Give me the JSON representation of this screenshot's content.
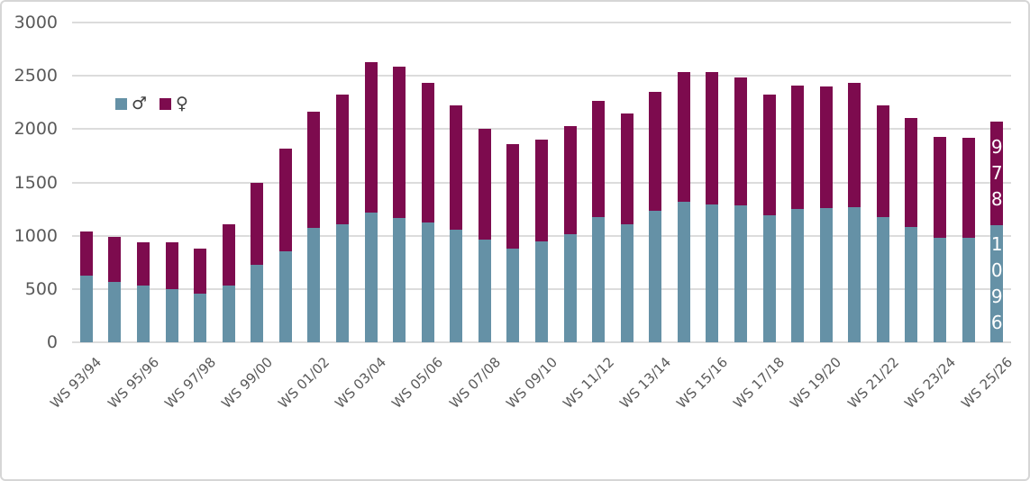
{
  "chart_data": {
    "type": "bar",
    "stacked": true,
    "title": "",
    "xlabel": "",
    "ylabel": "",
    "categories": [
      "WS 93/94",
      "WS 94/95",
      "WS 95/96",
      "WS 96/97",
      "WS 97/98",
      "WS 98/99",
      "WS 99/00",
      "WS 00/01",
      "WS 01/02",
      "WS 02/03",
      "WS 03/04",
      "WS 04/05",
      "WS 05/06",
      "WS 06/07",
      "WS 07/08",
      "WS 08/09",
      "WS 09/10",
      "WS 10/11",
      "WS 11/12",
      "WS 12/13",
      "WS 13/14",
      "WS 14/15",
      "WS 15/16",
      "WS 16/17",
      "WS 17/18",
      "WS 18/19",
      "WS 19/20",
      "WS 20/21",
      "WS 21/22",
      "WS 22/23",
      "WS 23/24",
      "WS 24/25",
      "WS 25/26"
    ],
    "series": [
      {
        "name": "male",
        "legend_label": "♂",
        "color": "#6591A6",
        "values": [
          625,
          570,
          530,
          500,
          460,
          530,
          725,
          850,
          1075,
          1110,
          1220,
          1170,
          1120,
          1060,
          960,
          875,
          945,
          1010,
          1175,
          1105,
          1230,
          1320,
          1290,
          1285,
          1190,
          1250,
          1255,
          1265,
          1175,
          1080,
          980,
          980,
          1096
        ]
      },
      {
        "name": "female",
        "legend_label": "♀",
        "color": "#7D0B4E",
        "values": [
          415,
          415,
          410,
          440,
          420,
          580,
          770,
          965,
          1085,
          1215,
          1405,
          1420,
          1310,
          1165,
          1040,
          985,
          960,
          1020,
          1090,
          1045,
          1120,
          1215,
          1245,
          1200,
          1130,
          1155,
          1145,
          1170,
          1050,
          1025,
          945,
          935,
          978
        ]
      }
    ],
    "ylim": [
      0,
      3000
    ],
    "y_ticks": [
      0,
      500,
      1000,
      1500,
      2000,
      2500,
      3000
    ],
    "y_tick_labels": [
      "0",
      "500",
      "1000",
      "1500",
      "2000",
      "2500",
      "3000"
    ],
    "x_tick_every": 2,
    "grid": true,
    "gridline_color": "#DCDCDC",
    "axis_text_color": "#595959",
    "legend_position": "inside-top-left",
    "data_labels": {
      "only_last_category": true,
      "category": "WS 25/26",
      "male": "1096",
      "female": "978",
      "text_color": "#FFFFFF",
      "orientation": "vertical-stacked-digits"
    }
  }
}
